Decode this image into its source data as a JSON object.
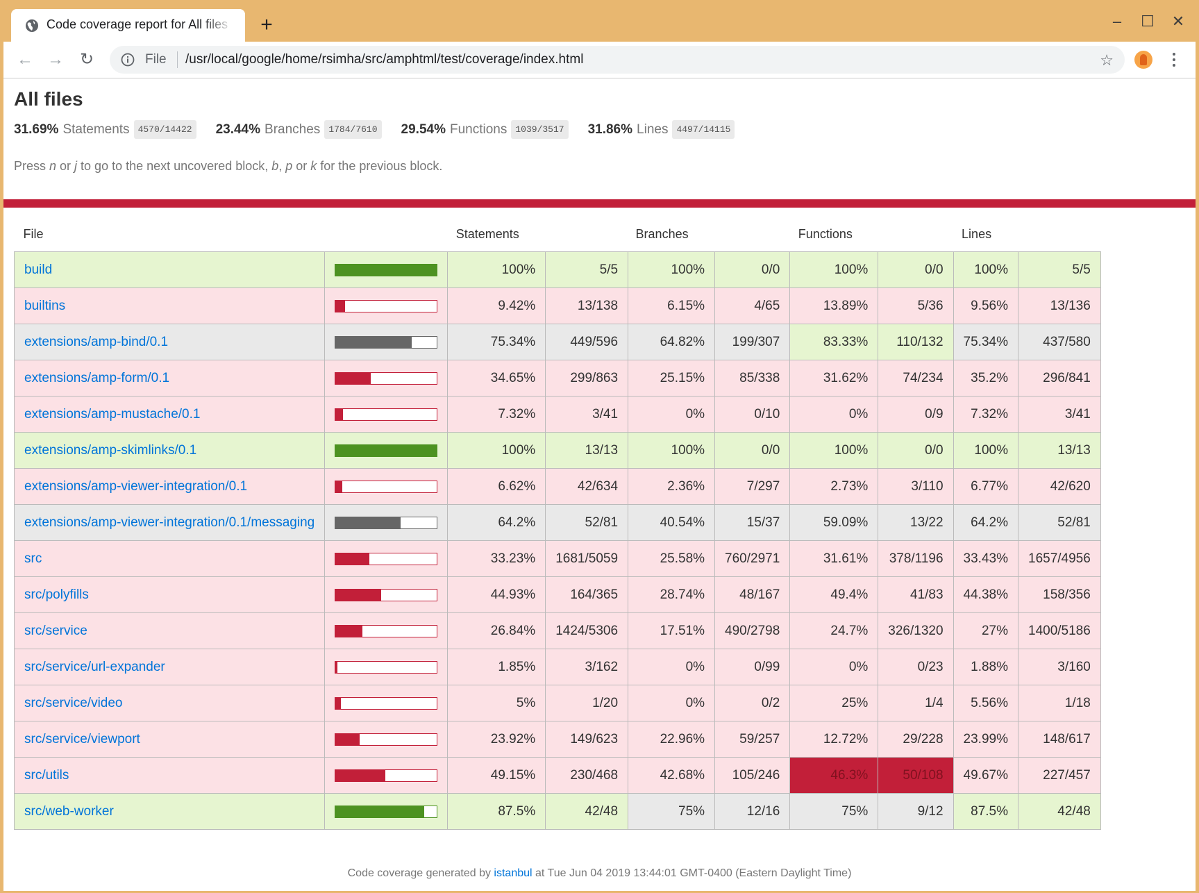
{
  "browser": {
    "tab_title": "Code coverage report for All files",
    "scheme_label": "File",
    "url": "/usr/local/google/home/rsimha/src/amphtml/test/coverage/index.html",
    "new_tab": "+",
    "min_icon": "minimize-icon",
    "colors": {
      "frame": "#e8b770",
      "toolbar": "#ffffff",
      "omnibox": "#f1f3f4"
    }
  },
  "page": {
    "title": "All files",
    "summary": [
      {
        "pct": "31.69%",
        "label": "Statements",
        "fraction": "4570/14422"
      },
      {
        "pct": "23.44%",
        "label": "Branches",
        "fraction": "1784/7610"
      },
      {
        "pct": "29.54%",
        "label": "Functions",
        "fraction": "1039/3517"
      },
      {
        "pct": "31.86%",
        "label": "Lines",
        "fraction": "4497/14115"
      }
    ],
    "hint": {
      "t1": "Press ",
      "k1": "n",
      "t2": " or ",
      "k2": "j",
      "t3": " to go to the next uncovered block, ",
      "k3": "b",
      "t4": ", ",
      "k4": "p",
      "t5": " or ",
      "k5": "k",
      "t6": " for the previous block."
    },
    "headers": {
      "file": "File",
      "statements": "Statements",
      "branches": "Branches",
      "functions": "Functions",
      "lines": "Lines"
    },
    "colors": {
      "high": "#4d9221",
      "low": "#c21f39",
      "medium": "#666666",
      "high_bg": "#e6f5d0",
      "low_bg": "#fce1e5",
      "medium_bg": "#e9e9e9",
      "link": "#0074d9"
    },
    "rows": [
      {
        "file": "build",
        "level": "high",
        "coverage": 1.0,
        "stmt_pct": "100%",
        "stmt_frac": "5/5",
        "br_pct": "100%",
        "br_frac": "0/0",
        "fn_pct": "100%",
        "fn_frac": "0/0",
        "ln_pct": "100%",
        "ln_frac": "5/5",
        "stmt_cls": "high",
        "br_cls": "high",
        "fn_cls": "high",
        "ln_cls": "high"
      },
      {
        "file": "builtins",
        "level": "low",
        "coverage": 0.0942,
        "stmt_pct": "9.42%",
        "stmt_frac": "13/138",
        "br_pct": "6.15%",
        "br_frac": "4/65",
        "fn_pct": "13.89%",
        "fn_frac": "5/36",
        "ln_pct": "9.56%",
        "ln_frac": "13/136",
        "stmt_cls": "low",
        "br_cls": "low",
        "fn_cls": "low",
        "ln_cls": "low"
      },
      {
        "file": "extensions/amp-bind/0.1",
        "level": "medium",
        "coverage": 0.7534,
        "stmt_pct": "75.34%",
        "stmt_frac": "449/596",
        "br_pct": "64.82%",
        "br_frac": "199/307",
        "fn_pct": "83.33%",
        "fn_frac": "110/132",
        "ln_pct": "75.34%",
        "ln_frac": "437/580",
        "stmt_cls": "medium",
        "br_cls": "medium",
        "fn_cls": "high",
        "ln_cls": "medium"
      },
      {
        "file": "extensions/amp-form/0.1",
        "level": "low",
        "coverage": 0.3465,
        "stmt_pct": "34.65%",
        "stmt_frac": "299/863",
        "br_pct": "25.15%",
        "br_frac": "85/338",
        "fn_pct": "31.62%",
        "fn_frac": "74/234",
        "ln_pct": "35.2%",
        "ln_frac": "296/841",
        "stmt_cls": "low",
        "br_cls": "low",
        "fn_cls": "low",
        "ln_cls": "low"
      },
      {
        "file": "extensions/amp-mustache/0.1",
        "level": "low",
        "coverage": 0.0732,
        "stmt_pct": "7.32%",
        "stmt_frac": "3/41",
        "br_pct": "0%",
        "br_frac": "0/10",
        "fn_pct": "0%",
        "fn_frac": "0/9",
        "ln_pct": "7.32%",
        "ln_frac": "3/41",
        "stmt_cls": "low",
        "br_cls": "low",
        "fn_cls": "low",
        "ln_cls": "low"
      },
      {
        "file": "extensions/amp-skimlinks/0.1",
        "level": "high",
        "coverage": 1.0,
        "stmt_pct": "100%",
        "stmt_frac": "13/13",
        "br_pct": "100%",
        "br_frac": "0/0",
        "fn_pct": "100%",
        "fn_frac": "0/0",
        "ln_pct": "100%",
        "ln_frac": "13/13",
        "stmt_cls": "high",
        "br_cls": "high",
        "fn_cls": "high",
        "ln_cls": "high"
      },
      {
        "file": "extensions/amp-viewer-integration/0.1",
        "level": "low",
        "coverage": 0.0662,
        "stmt_pct": "6.62%",
        "stmt_frac": "42/634",
        "br_pct": "2.36%",
        "br_frac": "7/297",
        "fn_pct": "2.73%",
        "fn_frac": "3/110",
        "ln_pct": "6.77%",
        "ln_frac": "42/620",
        "stmt_cls": "low",
        "br_cls": "low",
        "fn_cls": "low",
        "ln_cls": "low"
      },
      {
        "file": "extensions/amp-viewer-integration/0.1/messaging",
        "level": "medium",
        "coverage": 0.642,
        "stmt_pct": "64.2%",
        "stmt_frac": "52/81",
        "br_pct": "40.54%",
        "br_frac": "15/37",
        "fn_pct": "59.09%",
        "fn_frac": "13/22",
        "ln_pct": "64.2%",
        "ln_frac": "52/81",
        "stmt_cls": "medium",
        "br_cls": "medium",
        "fn_cls": "medium",
        "ln_cls": "medium"
      },
      {
        "file": "src",
        "level": "low",
        "coverage": 0.3323,
        "stmt_pct": "33.23%",
        "stmt_frac": "1681/5059",
        "br_pct": "25.58%",
        "br_frac": "760/2971",
        "fn_pct": "31.61%",
        "fn_frac": "378/1196",
        "ln_pct": "33.43%",
        "ln_frac": "1657/4956",
        "stmt_cls": "low",
        "br_cls": "low",
        "fn_cls": "low",
        "ln_cls": "low"
      },
      {
        "file": "src/polyfills",
        "level": "low",
        "coverage": 0.4493,
        "stmt_pct": "44.93%",
        "stmt_frac": "164/365",
        "br_pct": "28.74%",
        "br_frac": "48/167",
        "fn_pct": "49.4%",
        "fn_frac": "41/83",
        "ln_pct": "44.38%",
        "ln_frac": "158/356",
        "stmt_cls": "low",
        "br_cls": "low",
        "fn_cls": "low",
        "ln_cls": "low"
      },
      {
        "file": "src/service",
        "level": "low",
        "coverage": 0.2684,
        "stmt_pct": "26.84%",
        "stmt_frac": "1424/5306",
        "br_pct": "17.51%",
        "br_frac": "490/2798",
        "fn_pct": "24.7%",
        "fn_frac": "326/1320",
        "ln_pct": "27%",
        "ln_frac": "1400/5186",
        "stmt_cls": "low",
        "br_cls": "low",
        "fn_cls": "low",
        "ln_cls": "low"
      },
      {
        "file": "src/service/url-expander",
        "level": "low",
        "coverage": 0.0185,
        "stmt_pct": "1.85%",
        "stmt_frac": "3/162",
        "br_pct": "0%",
        "br_frac": "0/99",
        "fn_pct": "0%",
        "fn_frac": "0/23",
        "ln_pct": "1.88%",
        "ln_frac": "3/160",
        "stmt_cls": "low",
        "br_cls": "low",
        "fn_cls": "low",
        "ln_cls": "low"
      },
      {
        "file": "src/service/video",
        "level": "low",
        "coverage": 0.05,
        "stmt_pct": "5%",
        "stmt_frac": "1/20",
        "br_pct": "0%",
        "br_frac": "0/2",
        "fn_pct": "25%",
        "fn_frac": "1/4",
        "ln_pct": "5.56%",
        "ln_frac": "1/18",
        "stmt_cls": "low",
        "br_cls": "low",
        "fn_cls": "low",
        "ln_cls": "low"
      },
      {
        "file": "src/service/viewport",
        "level": "low",
        "coverage": 0.2392,
        "stmt_pct": "23.92%",
        "stmt_frac": "149/623",
        "br_pct": "22.96%",
        "br_frac": "59/257",
        "fn_pct": "12.72%",
        "fn_frac": "29/228",
        "ln_pct": "23.99%",
        "ln_frac": "148/617",
        "stmt_cls": "low",
        "br_cls": "low",
        "fn_cls": "low",
        "ln_cls": "low"
      },
      {
        "file": "src/utils",
        "level": "low",
        "coverage": 0.4915,
        "stmt_pct": "49.15%",
        "stmt_frac": "230/468",
        "br_pct": "42.68%",
        "br_frac": "105/246",
        "fn_pct": "46.3%",
        "fn_frac": "50/108",
        "ln_pct": "49.67%",
        "ln_frac": "227/457",
        "stmt_cls": "low",
        "br_cls": "low",
        "fn_cls": "red",
        "ln_cls": "low"
      },
      {
        "file": "src/web-worker",
        "level": "high",
        "coverage": 0.875,
        "stmt_pct": "87.5%",
        "stmt_frac": "42/48",
        "br_pct": "75%",
        "br_frac": "12/16",
        "fn_pct": "75%",
        "fn_frac": "9/12",
        "ln_pct": "87.5%",
        "ln_frac": "42/48",
        "stmt_cls": "high",
        "br_cls": "medium",
        "fn_cls": "medium",
        "ln_cls": "high"
      }
    ],
    "footer": {
      "before": "Code coverage generated by ",
      "link": "istanbul",
      "after": " at Tue Jun 04 2019 13:44:01 GMT-0400 (Eastern Daylight Time)"
    }
  }
}
